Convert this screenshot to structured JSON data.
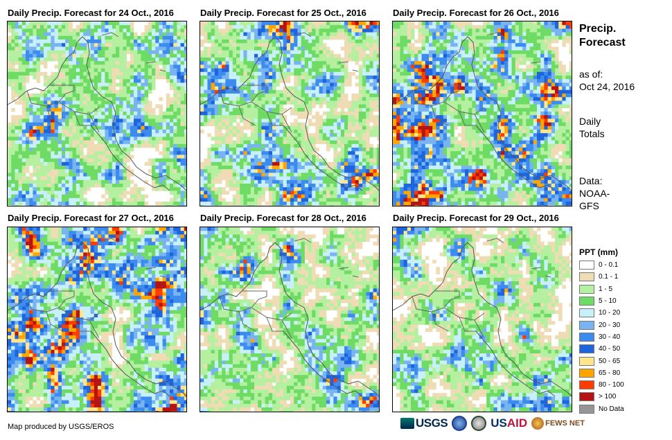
{
  "panels": [
    {
      "title": "Daily Precip. Forecast for 24 Oct., 2016",
      "seed": 24
    },
    {
      "title": "Daily Precip. Forecast for 25 Oct., 2016",
      "seed": 25
    },
    {
      "title": "Daily Precip. Forecast for 26 Oct., 2016",
      "seed": 26
    },
    {
      "title": "Daily Precip. Forecast for 27 Oct., 2016",
      "seed": 27
    },
    {
      "title": "Daily Precip. Forecast for 28 Oct., 2016",
      "seed": 28
    },
    {
      "title": "Daily Precip. Forecast for 29 Oct., 2016",
      "seed": 29
    }
  ],
  "side": {
    "title_line1": "Precip.",
    "title_line2": "Forecast",
    "asof_label": "as of:",
    "asof_date": "Oct 24, 2016",
    "totals_line1": "Daily",
    "totals_line2": "Totals",
    "data_line1": "Data:",
    "data_line2": "NOAA-",
    "data_line3": "GFS"
  },
  "legend": {
    "title": "PPT (mm)",
    "items": [
      {
        "label": "0 - 0.1",
        "color": "#ffffff"
      },
      {
        "label": "0.1 - 1",
        "color": "#f0dcb4"
      },
      {
        "label": "1 - 5",
        "color": "#b4f0a0"
      },
      {
        "label": "5 - 10",
        "color": "#6edc64"
      },
      {
        "label": "10 - 20",
        "color": "#c8f0fa"
      },
      {
        "label": "20 - 30",
        "color": "#78b4f0"
      },
      {
        "label": "30 - 40",
        "color": "#3c8cf0"
      },
      {
        "label": "40 - 50",
        "color": "#1e64dc"
      },
      {
        "label": "50 - 65",
        "color": "#ffe68c"
      },
      {
        "label": "65 - 80",
        "color": "#ffa500"
      },
      {
        "label": "80 - 100",
        "color": "#ff3c00"
      },
      {
        "label": "> 100",
        "color": "#b41414"
      },
      {
        "label": "No Data",
        "color": "#969696"
      }
    ]
  },
  "credit": "Map produced by USGS/EROS",
  "logos": {
    "usgs": "USGS",
    "usaid_a": "US",
    "usaid_b": "AID",
    "fews": "FEWS NET"
  }
}
